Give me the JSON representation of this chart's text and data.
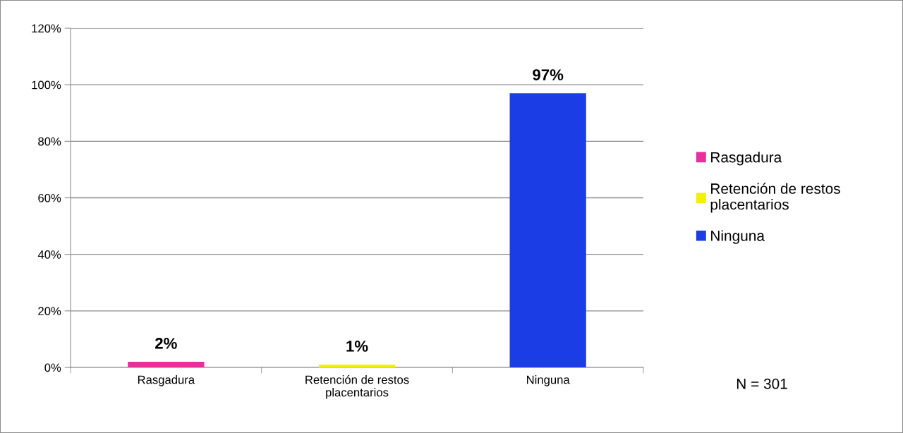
{
  "chart_data": {
    "type": "bar",
    "categories": [
      "Rasgadura",
      "Retención de restos placentarios",
      "Ninguna"
    ],
    "series": [
      {
        "name": "Rasgadura",
        "color": "#e8309a",
        "values": [
          2,
          null,
          null
        ],
        "value_labels": [
          "2%",
          null,
          null
        ]
      },
      {
        "name": "Retención de restos placentarios",
        "color": "#f2f200",
        "values": [
          null,
          1,
          null
        ],
        "value_labels": [
          null,
          "1%",
          null
        ]
      },
      {
        "name": "Ninguna",
        "color": "#1b3de6",
        "values": [
          null,
          null,
          97
        ],
        "value_labels": [
          null,
          null,
          "97%"
        ]
      }
    ],
    "ylim": [
      0,
      120
    ],
    "yticks": [
      {
        "value": 0,
        "label": "0%"
      },
      {
        "value": 20,
        "label": "20%"
      },
      {
        "value": 40,
        "label": "40%"
      },
      {
        "value": 60,
        "label": "60%"
      },
      {
        "value": 80,
        "label": "80%"
      },
      {
        "value": 100,
        "label": "100%"
      },
      {
        "value": 120,
        "label": "120%"
      }
    ],
    "grid": "y",
    "legend": "right",
    "annotations": [
      "N = 301"
    ]
  }
}
